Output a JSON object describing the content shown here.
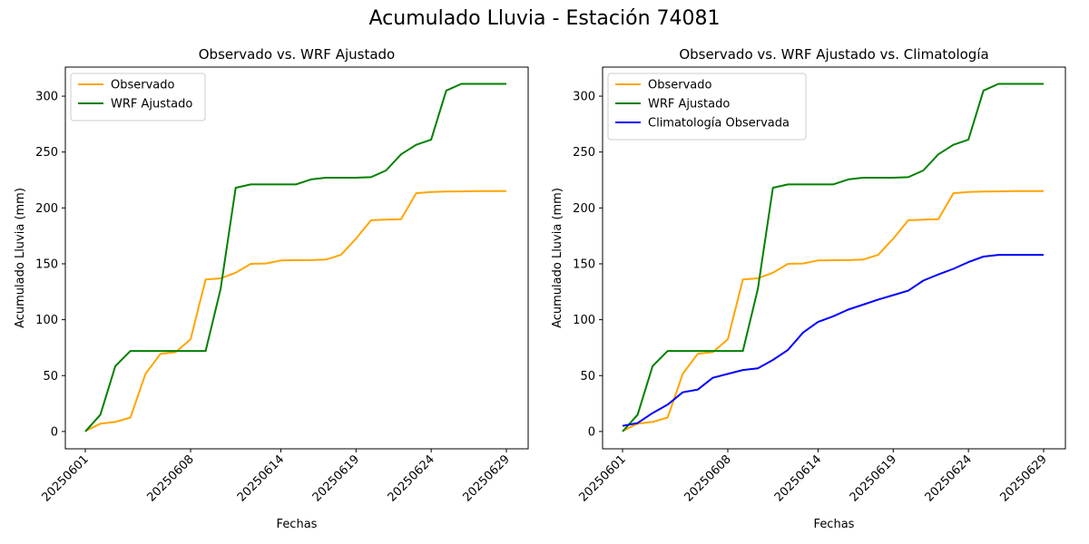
{
  "figure": {
    "title": "Acumulado Lluvia - Estación 74081"
  },
  "colors": {
    "observado": "#ffa500",
    "wrf": "#008000",
    "clima": "#0000ff"
  },
  "chart_data": [
    {
      "type": "line",
      "title": "Observado vs. WRF Ajustado",
      "xlabel": "Fechas",
      "ylabel": "Acumulado Lluvia (mm)",
      "x_tick_labels": [
        "20250601",
        "20250608",
        "20250614",
        "20250619",
        "20250624",
        "20250629"
      ],
      "y_ticks": [
        0,
        50,
        100,
        150,
        200,
        250,
        300
      ],
      "ylim": [
        -15.5,
        326
      ],
      "grid": false,
      "legend_position": "upper-left",
      "x": [
        "20250601",
        "20250602",
        "20250603",
        "20250604",
        "20250605",
        "20250606",
        "20250607",
        "20250608",
        "20250609",
        "20250610",
        "20250611",
        "20250612",
        "20250613",
        "20250614",
        "20250615",
        "20250616",
        "20250617",
        "20250618",
        "20250619",
        "20250620",
        "20250621",
        "20250622",
        "20250623",
        "20250624",
        "20250625",
        "20250626",
        "20250627",
        "20250628",
        "20250629"
      ],
      "series": [
        {
          "name": "Observado",
          "color": "#ffa500",
          "values": [
            0.5,
            7,
            8.5,
            12.5,
            51.5,
            69.5,
            71,
            82.5,
            136,
            137,
            142,
            150,
            150.3,
            153,
            153.2,
            153.3,
            153.8,
            158,
            172.5,
            189,
            189.5,
            190,
            213.2,
            214.3,
            214.6,
            214.8,
            215.0,
            215.0,
            215.0
          ]
        },
        {
          "name": "WRF Ajustado",
          "color": "#008000",
          "values": [
            0,
            15,
            58.5,
            72,
            72,
            72,
            72,
            72,
            72,
            127.5,
            218,
            221,
            221,
            221,
            221,
            225.5,
            227,
            227,
            227,
            227.5,
            233.5,
            248,
            256.5,
            261,
            305,
            311,
            311,
            311,
            311
          ]
        }
      ]
    },
    {
      "type": "line",
      "title": "Observado vs. WRF Ajustado vs. Climatología",
      "xlabel": "Fechas",
      "ylabel": "Acumulado Lluvia (mm)",
      "x_tick_labels": [
        "20250601",
        "20250608",
        "20250614",
        "20250619",
        "20250624",
        "20250629"
      ],
      "y_ticks": [
        0,
        50,
        100,
        150,
        200,
        250,
        300
      ],
      "ylim": [
        -15.5,
        326
      ],
      "grid": false,
      "legend_position": "upper-left",
      "x": [
        "20250601",
        "20250602",
        "20250603",
        "20250604",
        "20250605",
        "20250606",
        "20250607",
        "20250608",
        "20250609",
        "20250610",
        "20250611",
        "20250612",
        "20250613",
        "20250614",
        "20250615",
        "20250616",
        "20250617",
        "20250618",
        "20250619",
        "20250620",
        "20250621",
        "20250622",
        "20250623",
        "20250624",
        "20250625",
        "20250626",
        "20250627",
        "20250628",
        "20250629"
      ],
      "series": [
        {
          "name": "Observado",
          "color": "#ffa500",
          "values": [
            0.5,
            7,
            8.5,
            12.5,
            51.5,
            69.5,
            71,
            82.5,
            136,
            137,
            142,
            150,
            150.3,
            153,
            153.2,
            153.3,
            153.8,
            158,
            172.5,
            189,
            189.5,
            190,
            213.2,
            214.3,
            214.6,
            214.8,
            215.0,
            215.0,
            215.0
          ]
        },
        {
          "name": "WRF Ajustado",
          "color": "#008000",
          "values": [
            0,
            15,
            58.5,
            72,
            72,
            72,
            72,
            72,
            72,
            127.5,
            218,
            221,
            221,
            221,
            221,
            225.5,
            227,
            227,
            227,
            227.5,
            233.5,
            248,
            256.5,
            261,
            305,
            311,
            311,
            311,
            311
          ]
        },
        {
          "name": "Climatología Observada",
          "color": "#0000ff",
          "values": [
            5,
            7.5,
            16.5,
            24,
            35,
            37.5,
            48,
            51.5,
            55,
            56.5,
            64,
            73,
            88.5,
            98,
            103,
            109,
            113.5,
            118,
            122,
            126,
            135,
            140.5,
            145.5,
            151.5,
            156.5,
            158,
            158,
            158,
            158
          ]
        }
      ]
    }
  ]
}
